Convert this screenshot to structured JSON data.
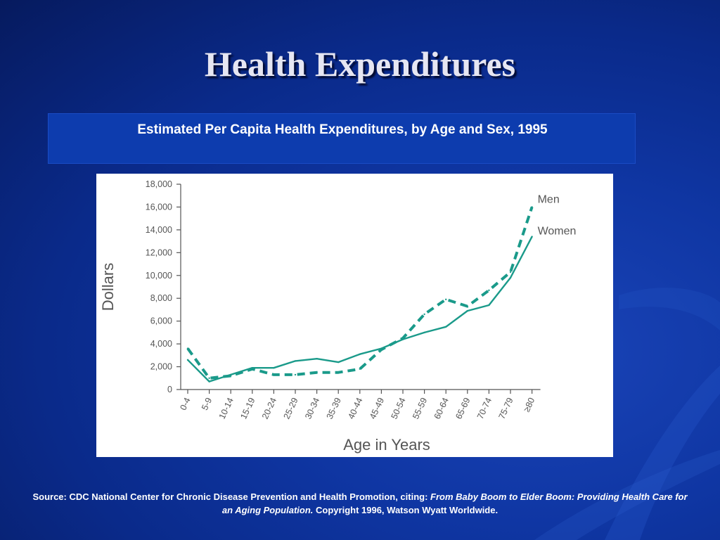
{
  "slide": {
    "title": "Health Expenditures",
    "subtitle": "Estimated Per Capita Health Expenditures, by Age and Sex, 1995",
    "source": {
      "prefix": "Source: CDC National Center for Chronic Disease Prevention and Health Promotion, citing: ",
      "italic": "From Baby Boom to Elder Boom: Providing Health Care for an Aging Population.",
      "suffix": " Copyright 1996, Watson Wyatt Worldwide."
    }
  },
  "chart_data": {
    "type": "line",
    "xlabel": "Age in Years",
    "ylabel": "Dollars",
    "ylim": [
      0,
      18000
    ],
    "yticks": [
      0,
      2000,
      4000,
      6000,
      8000,
      10000,
      12000,
      14000,
      16000,
      18000
    ],
    "ytick_labels": [
      "0",
      "2,000",
      "4,000",
      "6,000",
      "8,000",
      "10,000",
      "12,000",
      "14,000",
      "16,000",
      "18,000"
    ],
    "categories": [
      "0-4",
      "5-9",
      "10-14",
      "15-19",
      "20-24",
      "25-29",
      "30-34",
      "35-39",
      "40-44",
      "45-49",
      "50-54",
      "55-59",
      "60-64",
      "65-69",
      "70-74",
      "75-79",
      "≥80"
    ],
    "legend": "direct labels at right end of lines",
    "series": [
      {
        "name": "Men",
        "style": "dashed",
        "color": "#1a9a8a",
        "values": [
          3600,
          1000,
          1200,
          1800,
          1300,
          1300,
          1500,
          1500,
          1800,
          3500,
          4500,
          6600,
          7900,
          7300,
          8700,
          10300,
          16000
        ]
      },
      {
        "name": "Women",
        "style": "solid",
        "color": "#1a9a8a",
        "values": [
          2600,
          700,
          1300,
          1900,
          1900,
          2500,
          2700,
          2400,
          3100,
          3600,
          4400,
          5000,
          5500,
          6900,
          7400,
          9800,
          13400
        ]
      }
    ]
  }
}
